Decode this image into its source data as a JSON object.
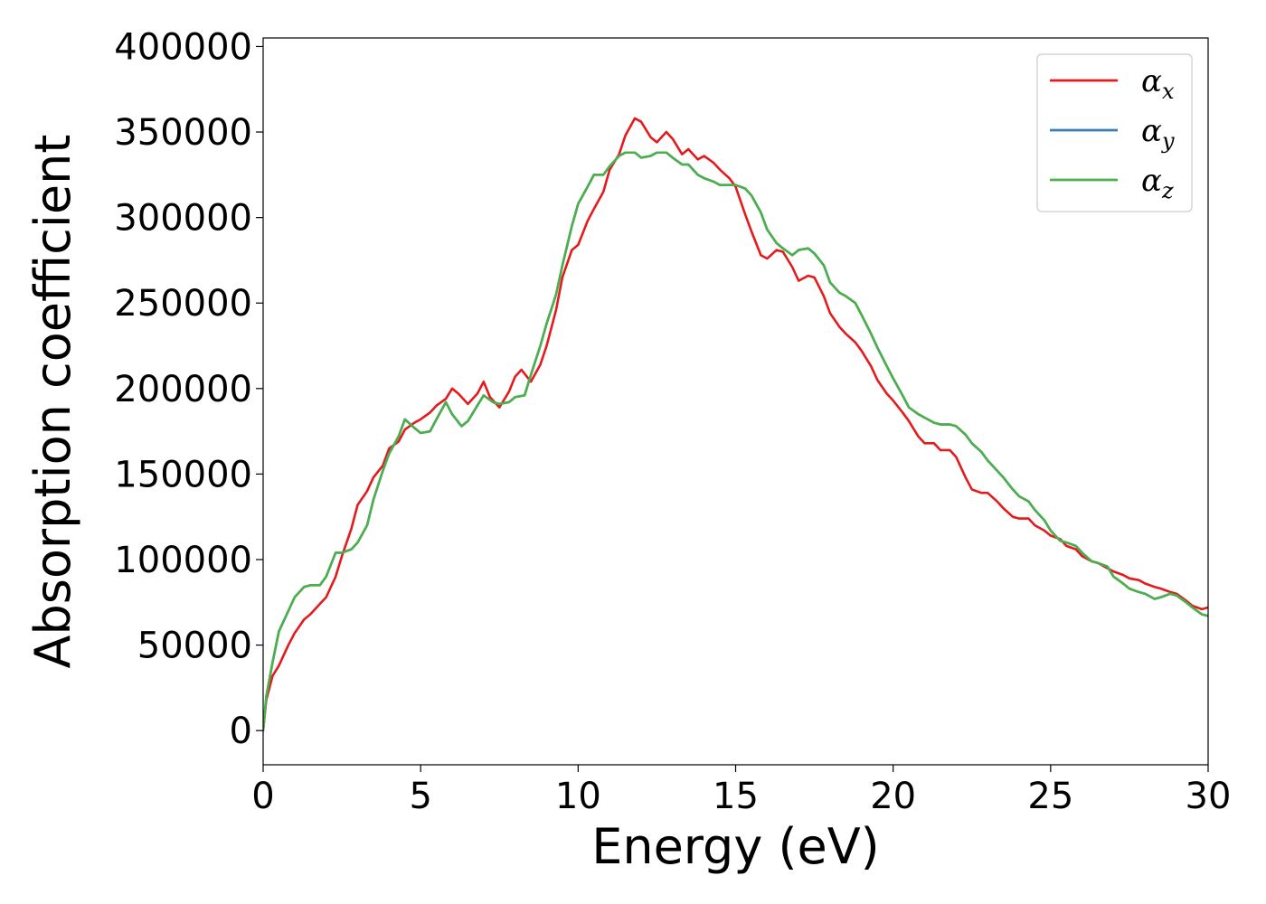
{
  "chart_data": {
    "type": "line",
    "title": "",
    "xlabel": "Energy (eV)",
    "ylabel": "Absorption coefficient",
    "xlim": [
      0,
      30
    ],
    "ylim": [
      -20000,
      405000
    ],
    "xticks": [
      0,
      5,
      10,
      15,
      20,
      25,
      30
    ],
    "yticks": [
      0,
      50000,
      100000,
      150000,
      200000,
      250000,
      300000,
      350000,
      400000
    ],
    "grid": false,
    "legend_position": "upper-right",
    "series": [
      {
        "name": "αx",
        "label_base": "α",
        "label_sub": "x",
        "color": "#e41a1c",
        "x": [
          0,
          0.1,
          0.3,
          0.5,
          0.8,
          1.0,
          1.3,
          1.5,
          1.8,
          2.0,
          2.3,
          2.5,
          2.8,
          3.0,
          3.3,
          3.5,
          3.8,
          4.0,
          4.3,
          4.5,
          4.8,
          5.0,
          5.3,
          5.5,
          5.8,
          6.0,
          6.2,
          6.5,
          6.8,
          7.0,
          7.2,
          7.5,
          7.8,
          8.0,
          8.2,
          8.5,
          8.8,
          9.0,
          9.3,
          9.5,
          9.8,
          10.0,
          10.3,
          10.5,
          10.8,
          11.0,
          11.3,
          11.5,
          11.8,
          12.0,
          12.3,
          12.5,
          12.8,
          13.0,
          13.3,
          13.5,
          13.8,
          14.0,
          14.3,
          14.5,
          14.8,
          15.0,
          15.3,
          15.5,
          15.8,
          16.0,
          16.3,
          16.5,
          16.8,
          17.0,
          17.3,
          17.5,
          17.8,
          18.0,
          18.3,
          18.5,
          18.8,
          19.0,
          19.3,
          19.5,
          19.8,
          20.0,
          20.3,
          20.5,
          20.8,
          21.0,
          21.3,
          21.5,
          21.8,
          22.0,
          22.3,
          22.5,
          22.8,
          23.0,
          23.3,
          23.5,
          23.8,
          24.0,
          24.3,
          24.5,
          24.8,
          25.0,
          25.3,
          25.5,
          25.8,
          26.0,
          26.3,
          26.5,
          26.8,
          27.0,
          27.3,
          27.5,
          27.8,
          28.0,
          28.3,
          28.5,
          28.8,
          29.0,
          29.3,
          29.5,
          29.8,
          30.0
        ],
        "y": [
          0,
          18000,
          32000,
          38000,
          50000,
          57000,
          65000,
          68000,
          74000,
          78000,
          90000,
          102000,
          118000,
          132000,
          140000,
          148000,
          155000,
          165000,
          169000,
          176000,
          180000,
          182000,
          186000,
          190000,
          194000,
          200000,
          197000,
          191000,
          197000,
          204000,
          195000,
          189000,
          198000,
          207000,
          211000,
          204000,
          214000,
          225000,
          246000,
          265000,
          281000,
          284000,
          298000,
          305000,
          315000,
          328000,
          337000,
          348000,
          358000,
          356000,
          347000,
          344000,
          350000,
          346000,
          337000,
          340000,
          334000,
          336000,
          332000,
          328000,
          323000,
          318000,
          302000,
          292000,
          278000,
          276000,
          281000,
          280000,
          271000,
          263000,
          266000,
          265000,
          254000,
          244000,
          236000,
          232000,
          227000,
          222000,
          213000,
          205000,
          197000,
          193000,
          186000,
          181000,
          172000,
          168000,
          168000,
          164000,
          164000,
          160000,
          148000,
          141000,
          139000,
          139000,
          134000,
          130000,
          125000,
          124000,
          124000,
          120000,
          117000,
          114000,
          112000,
          108000,
          106000,
          102000,
          99000,
          98000,
          95000,
          93000,
          91000,
          89000,
          88000,
          86000,
          84000,
          83000,
          81000,
          80000,
          76000,
          73000,
          71000,
          72000
        ]
      },
      {
        "name": "αy",
        "label_base": "α",
        "label_sub": "y",
        "color": "#377eb8",
        "x": [
          0,
          0.1,
          0.3,
          0.5,
          0.8,
          1.0,
          1.3,
          1.5,
          1.8,
          2.0,
          2.3,
          2.5,
          2.8,
          3.0,
          3.3,
          3.5,
          3.8,
          4.0,
          4.3,
          4.5,
          4.8,
          5.0,
          5.3,
          5.5,
          5.8,
          6.0,
          6.3,
          6.5,
          6.8,
          7.0,
          7.3,
          7.5,
          7.8,
          8.0,
          8.3,
          8.5,
          8.8,
          9.0,
          9.3,
          9.5,
          9.8,
          10.0,
          10.3,
          10.5,
          10.8,
          11.0,
          11.3,
          11.5,
          11.8,
          12.0,
          12.3,
          12.5,
          12.8,
          13.0,
          13.3,
          13.5,
          13.8,
          14.0,
          14.3,
          14.5,
          14.8,
          15.0,
          15.3,
          15.5,
          15.8,
          16.0,
          16.3,
          16.5,
          16.8,
          17.0,
          17.3,
          17.5,
          17.8,
          18.0,
          18.3,
          18.5,
          18.8,
          19.0,
          19.3,
          19.5,
          19.8,
          20.0,
          20.3,
          20.5,
          20.8,
          21.0,
          21.3,
          21.5,
          21.8,
          22.0,
          22.3,
          22.5,
          22.8,
          23.0,
          23.3,
          23.5,
          23.8,
          24.0,
          24.3,
          24.5,
          24.8,
          25.0,
          25.3,
          25.5,
          25.8,
          26.0,
          26.3,
          26.5,
          26.8,
          27.0,
          27.3,
          27.5,
          27.8,
          28.0,
          28.3,
          28.5,
          28.8,
          29.0,
          29.3,
          29.5,
          29.8,
          30.0
        ],
        "y": [
          0,
          20000,
          40000,
          58000,
          70000,
          78000,
          84000,
          85000,
          85000,
          90000,
          104000,
          104000,
          106000,
          110000,
          120000,
          135000,
          152000,
          162000,
          172000,
          182000,
          177000,
          174000,
          175000,
          182000,
          192000,
          185000,
          178000,
          181000,
          190000,
          196000,
          192000,
          191000,
          192000,
          195000,
          196000,
          208000,
          225000,
          238000,
          255000,
          272000,
          295000,
          308000,
          318000,
          325000,
          325000,
          330000,
          336000,
          338000,
          338000,
          335000,
          336000,
          338000,
          338000,
          335000,
          331000,
          331000,
          325000,
          323000,
          321000,
          319000,
          319000,
          319000,
          317000,
          313000,
          303000,
          293000,
          285000,
          282000,
          278000,
          281000,
          282000,
          279000,
          272000,
          262000,
          256000,
          254000,
          250000,
          243000,
          232000,
          224000,
          213000,
          206000,
          196000,
          189000,
          185000,
          183000,
          180000,
          179000,
          179000,
          178000,
          173000,
          168000,
          163000,
          158000,
          152000,
          148000,
          141000,
          137000,
          134000,
          129000,
          123000,
          117000,
          111000,
          110000,
          108000,
          104000,
          99000,
          98000,
          96000,
          90000,
          86000,
          83000,
          81000,
          80000,
          77000,
          78000,
          80000,
          79000,
          75000,
          72000,
          68000,
          67000
        ]
      },
      {
        "name": "αz",
        "label_base": "α",
        "label_sub": "z",
        "color": "#4daf4a",
        "x": [
          0,
          0.1,
          0.3,
          0.5,
          0.8,
          1.0,
          1.3,
          1.5,
          1.8,
          2.0,
          2.3,
          2.5,
          2.8,
          3.0,
          3.3,
          3.5,
          3.8,
          4.0,
          4.3,
          4.5,
          4.8,
          5.0,
          5.3,
          5.5,
          5.8,
          6.0,
          6.3,
          6.5,
          6.8,
          7.0,
          7.3,
          7.5,
          7.8,
          8.0,
          8.3,
          8.5,
          8.8,
          9.0,
          9.3,
          9.5,
          9.8,
          10.0,
          10.3,
          10.5,
          10.8,
          11.0,
          11.3,
          11.5,
          11.8,
          12.0,
          12.3,
          12.5,
          12.8,
          13.0,
          13.3,
          13.5,
          13.8,
          14.0,
          14.3,
          14.5,
          14.8,
          15.0,
          15.3,
          15.5,
          15.8,
          16.0,
          16.3,
          16.5,
          16.8,
          17.0,
          17.3,
          17.5,
          17.8,
          18.0,
          18.3,
          18.5,
          18.8,
          19.0,
          19.3,
          19.5,
          19.8,
          20.0,
          20.3,
          20.5,
          20.8,
          21.0,
          21.3,
          21.5,
          21.8,
          22.0,
          22.3,
          22.5,
          22.8,
          23.0,
          23.3,
          23.5,
          23.8,
          24.0,
          24.3,
          24.5,
          24.8,
          25.0,
          25.3,
          25.5,
          25.8,
          26.0,
          26.3,
          26.5,
          26.8,
          27.0,
          27.3,
          27.5,
          27.8,
          28.0,
          28.3,
          28.5,
          28.8,
          29.0,
          29.3,
          29.5,
          29.8,
          30.0
        ],
        "y": [
          0,
          20000,
          40000,
          58000,
          70000,
          78000,
          84000,
          85000,
          85000,
          90000,
          104000,
          104000,
          106000,
          110000,
          120000,
          135000,
          152000,
          162000,
          172000,
          182000,
          177000,
          174000,
          175000,
          182000,
          192000,
          185000,
          178000,
          181000,
          190000,
          196000,
          192000,
          191000,
          192000,
          195000,
          196000,
          208000,
          225000,
          238000,
          255000,
          272000,
          295000,
          308000,
          318000,
          325000,
          325000,
          330000,
          336000,
          338000,
          338000,
          335000,
          336000,
          338000,
          338000,
          335000,
          331000,
          331000,
          325000,
          323000,
          321000,
          319000,
          319000,
          319000,
          317000,
          313000,
          303000,
          293000,
          285000,
          282000,
          278000,
          281000,
          282000,
          279000,
          272000,
          262000,
          256000,
          254000,
          250000,
          243000,
          232000,
          224000,
          213000,
          206000,
          196000,
          189000,
          185000,
          183000,
          180000,
          179000,
          179000,
          178000,
          173000,
          168000,
          163000,
          158000,
          152000,
          148000,
          141000,
          137000,
          134000,
          129000,
          123000,
          117000,
          111000,
          110000,
          108000,
          104000,
          99000,
          98000,
          96000,
          90000,
          86000,
          83000,
          81000,
          80000,
          77000,
          78000,
          80000,
          79000,
          75000,
          72000,
          68000,
          67000
        ]
      }
    ]
  }
}
